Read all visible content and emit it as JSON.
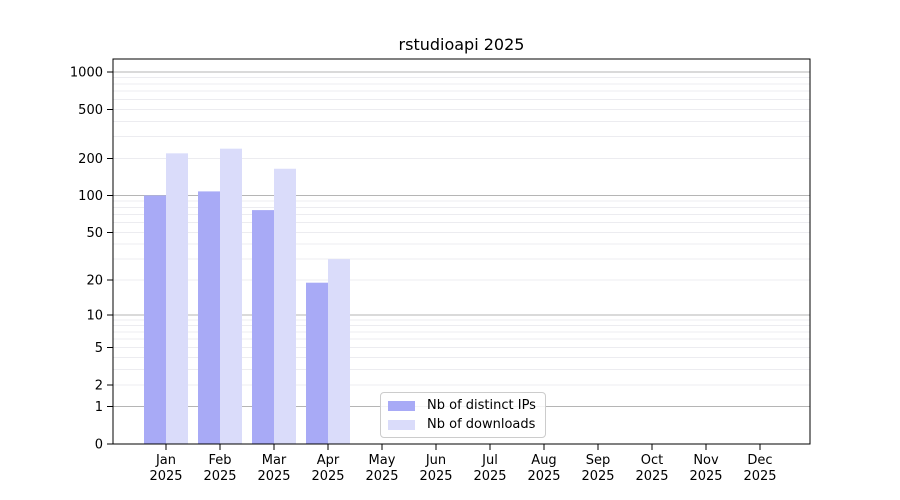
{
  "title": "rstudioapi 2025",
  "chart_data": {
    "type": "bar",
    "title": "rstudioapi 2025",
    "xlabel": "",
    "ylabel": "",
    "categories": [
      "Jan",
      "Feb",
      "Mar",
      "Apr",
      "May",
      "Jun",
      "Jul",
      "Aug",
      "Sep",
      "Oct",
      "Nov",
      "Dec"
    ],
    "x_tick_second_line": "2025",
    "series": [
      {
        "name": "Nb of distinct IPs",
        "color": "#a8aaf6",
        "values": [
          100,
          108,
          76,
          19,
          0,
          0,
          0,
          0,
          0,
          0,
          0,
          0
        ]
      },
      {
        "name": "Nb of downloads",
        "color": "#dadcfa",
        "values": [
          220,
          240,
          165,
          30,
          0,
          0,
          0,
          0,
          0,
          0,
          0,
          0
        ]
      }
    ],
    "yscale": "log1p",
    "ylim": [
      0,
      1000
    ],
    "y_ticks": [
      0,
      1,
      2,
      5,
      10,
      20,
      50,
      100,
      200,
      500,
      1000
    ],
    "grid": "horizontal-only, light minors at 2-9 per decade, darker majors at powers of 10",
    "legend_position": "inside-bottom-center-left",
    "colors": {
      "major_gridline": "#b5b5b5",
      "minor_gridline": "#ececf0",
      "axis": "#000000",
      "text": "#000000",
      "background": "#ffffff"
    }
  }
}
